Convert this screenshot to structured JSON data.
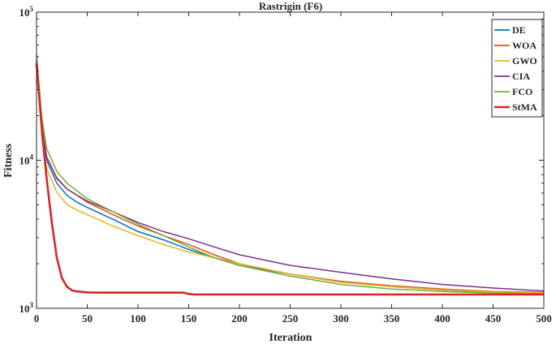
{
  "chart_data": {
    "type": "line",
    "title": "Rastrigin (F6)",
    "xlabel": "Iteration",
    "ylabel": "Fitness",
    "xlim": [
      0,
      500
    ],
    "ylim": [
      1000,
      100000
    ],
    "yscale": "log",
    "xticks": [
      "0",
      "50",
      "100",
      "150",
      "200",
      "250",
      "300",
      "350",
      "400",
      "450",
      "500"
    ],
    "yticks": [
      {
        "base": "10",
        "exp": "3",
        "value": 1000
      },
      {
        "base": "10",
        "exp": "4",
        "value": 10000
      },
      {
        "base": "10",
        "exp": "5",
        "value": 100000
      }
    ],
    "grid": false,
    "legend_position": "top-right",
    "series": [
      {
        "name": "DE",
        "color": "#0072BD",
        "x": [
          0,
          5,
          10,
          20,
          30,
          40,
          50,
          75,
          100,
          125,
          150,
          175,
          200,
          250,
          300,
          350,
          400,
          450,
          500
        ],
        "y": [
          48000,
          18000,
          10000,
          7000,
          5800,
          5200,
          4800,
          4000,
          3300,
          2900,
          2500,
          2200,
          1950,
          1700,
          1500,
          1400,
          1330,
          1280,
          1260
        ]
      },
      {
        "name": "WOA",
        "color": "#D95319",
        "x": [
          0,
          5,
          10,
          20,
          30,
          40,
          50,
          75,
          100,
          125,
          150,
          175,
          200,
          250,
          300,
          350,
          400,
          450,
          500
        ],
        "y": [
          44000,
          17000,
          10500,
          7500,
          6400,
          5800,
          5200,
          4300,
          3600,
          3100,
          2700,
          2300,
          2000,
          1700,
          1520,
          1420,
          1350,
          1300,
          1280
        ]
      },
      {
        "name": "GWO",
        "color": "#EDB120",
        "x": [
          0,
          5,
          10,
          20,
          30,
          40,
          50,
          75,
          100,
          125,
          150,
          175,
          200,
          250,
          300,
          350,
          400,
          450,
          500
        ],
        "y": [
          43000,
          15000,
          8800,
          6100,
          5000,
          4600,
          4300,
          3600,
          3100,
          2700,
          2400,
          2200,
          2000,
          1700,
          1500,
          1400,
          1330,
          1290,
          1270
        ]
      },
      {
        "name": "CIA",
        "color": "#7E2F8E",
        "x": [
          0,
          5,
          10,
          20,
          30,
          40,
          50,
          75,
          100,
          125,
          150,
          175,
          200,
          250,
          300,
          350,
          400,
          450,
          500
        ],
        "y": [
          46000,
          17000,
          10500,
          7600,
          6400,
          5800,
          5300,
          4500,
          3800,
          3300,
          2950,
          2600,
          2300,
          1950,
          1750,
          1580,
          1450,
          1370,
          1310
        ]
      },
      {
        "name": "FCO",
        "color": "#77AC30",
        "x": [
          0,
          5,
          10,
          20,
          30,
          40,
          50,
          75,
          100,
          125,
          150,
          175,
          200,
          250,
          300,
          350,
          400,
          450,
          500
        ],
        "y": [
          52000,
          20000,
          12000,
          8400,
          7000,
          6200,
          5500,
          4500,
          3700,
          3100,
          2600,
          2200,
          1950,
          1650,
          1450,
          1350,
          1300,
          1270,
          1250
        ]
      },
      {
        "name": "StMA",
        "color": "#D62728",
        "x": [
          0,
          3,
          6,
          10,
          15,
          20,
          25,
          30,
          35,
          40,
          50,
          60,
          80,
          100,
          145,
          150,
          155,
          200,
          300,
          400,
          500
        ],
        "y": [
          45000,
          25000,
          14000,
          7500,
          3800,
          2200,
          1600,
          1400,
          1320,
          1300,
          1280,
          1275,
          1275,
          1275,
          1275,
          1250,
          1240,
          1240,
          1240,
          1240,
          1240
        ]
      }
    ]
  }
}
